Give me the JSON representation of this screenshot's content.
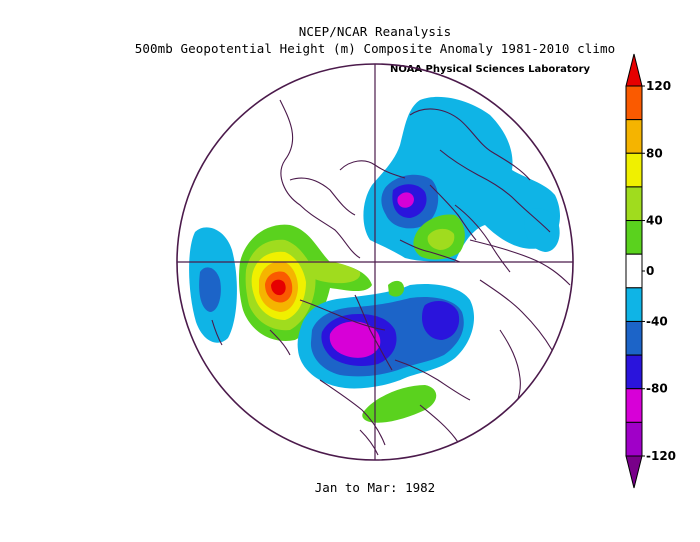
{
  "header": {
    "title": "NCEP/NCAR Reanalysis",
    "subtitle": "500mb Geopotential Height (m) Composite Anomaly 1981-2010 climo",
    "credit": "NOAA Physical Sciences Laboratory"
  },
  "footer": {
    "period": "Jan to Mar: 1982"
  },
  "map": {
    "projection": "north-polar-stereographic",
    "variable": "500mb Geopotential Height Anomaly",
    "units": "m"
  },
  "colorbar": {
    "labels": [
      "120",
      "80",
      "40",
      "0",
      "-40",
      "-80",
      "-120"
    ],
    "levels": [
      -120,
      -100,
      -80,
      -60,
      -40,
      -20,
      20,
      40,
      60,
      80,
      100,
      120
    ],
    "colors": {
      "lt_m120": "#780089",
      "m120_m100": "#a000c8",
      "m100_m80": "#d700d7",
      "m80_m60": "#2a14dc",
      "m60_m40": "#1c64c8",
      "m40_m20": "#0fb4e6",
      "m20_p20": "#ffffff",
      "p20_p40": "#5ad21e",
      "p40_p60": "#a0dc1e",
      "p60_p80": "#f0f000",
      "p80_p100": "#f5b400",
      "p100_p120": "#fa5a00",
      "gt_p120": "#e60000"
    }
  }
}
